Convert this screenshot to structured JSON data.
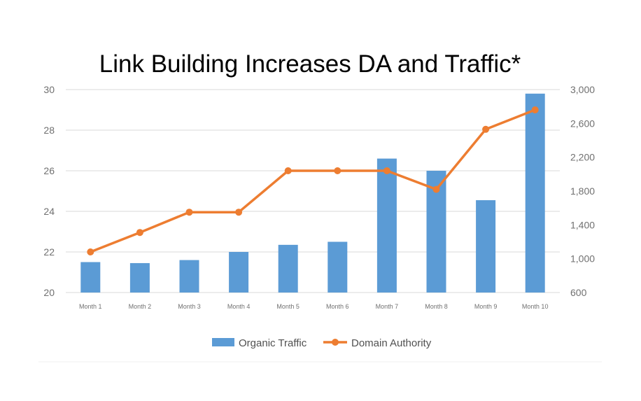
{
  "chart_data": {
    "type": "bar",
    "title": "Link Building Increases DA and Traffic*",
    "categories": [
      "Month 1",
      "Month 2",
      "Month 3",
      "Month 4",
      "Month 5",
      "Month 6",
      "Month 7",
      "Month 8",
      "Month 9",
      "Month 10"
    ],
    "series": [
      {
        "name": "Organic Traffic",
        "type": "bar",
        "axis": "left",
        "color": "#5b9bd5",
        "values": [
          21.5,
          21.45,
          21.6,
          22.0,
          22.35,
          22.5,
          26.6,
          26.0,
          24.55,
          29.8
        ]
      },
      {
        "name": "Domain Authority",
        "type": "line",
        "axis": "right",
        "color": "#ed7d31",
        "values": [
          1080,
          1310,
          1550,
          1550,
          2040,
          2040,
          2040,
          1820,
          2530,
          2760
        ]
      }
    ],
    "y_left": {
      "min": 20,
      "max": 30,
      "ticks": [
        20,
        22,
        24,
        26,
        28,
        30
      ],
      "tick_labels": [
        "20",
        "22",
        "24",
        "26",
        "28",
        "30"
      ]
    },
    "y_right": {
      "min": 600,
      "max": 3000,
      "ticks": [
        600,
        1000,
        1400,
        1800,
        2200,
        2600,
        3000
      ],
      "tick_labels": [
        "600",
        "1,000",
        "1,400",
        "1,800",
        "2,200",
        "2,600",
        "3,000"
      ]
    },
    "grid": true,
    "legend": {
      "placement": "bottom",
      "items": [
        "Organic Traffic",
        "Domain Authority"
      ]
    }
  }
}
